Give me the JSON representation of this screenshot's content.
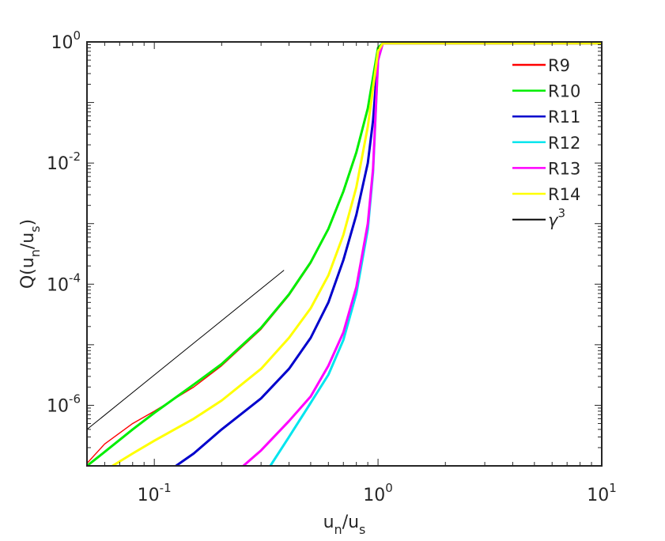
{
  "chart_data": {
    "type": "line",
    "title": "",
    "xscale": "log",
    "yscale": "log",
    "xlabel": {
      "main": "u",
      "sub1": "n",
      "mid": "/u",
      "sub2": "s"
    },
    "ylabel": {
      "pre": "Q(u",
      "sub1": "n",
      "mid": "/u",
      "sub2": "s",
      "post": ")"
    },
    "xlim": [
      0.05,
      10
    ],
    "ylim": [
      1e-07,
      1
    ],
    "xticks": [
      {
        "value": 0.1,
        "base": "10",
        "exp": "-1"
      },
      {
        "value": 1,
        "base": "10",
        "exp": "0"
      },
      {
        "value": 10,
        "base": "10",
        "exp": "1"
      }
    ],
    "yticks": [
      {
        "value": 1e-06,
        "base": "10",
        "exp": "-6"
      },
      {
        "value": 0.0001,
        "base": "10",
        "exp": "-4"
      },
      {
        "value": 0.01,
        "base": "10",
        "exp": "-2"
      },
      {
        "value": 1,
        "base": "10",
        "exp": "0"
      }
    ],
    "legend_position": "top-right",
    "series": [
      {
        "name": "R9",
        "color": "#ff0000",
        "x": [
          0.05,
          0.06,
          0.08,
          0.1,
          0.15,
          0.2,
          0.3,
          0.4,
          0.5,
          0.6,
          0.7,
          0.8,
          0.9,
          1.0,
          1.05,
          10
        ],
        "y": [
          1.1e-07,
          2.3e-07,
          5e-07,
          8e-07,
          2e-06,
          4.5e-06,
          1.8e-05,
          6.5e-05,
          0.00022,
          0.0008,
          0.0033,
          0.015,
          0.08,
          0.8,
          0.95,
          0.95
        ]
      },
      {
        "name": "R10",
        "color": "#00ee00",
        "x": [
          0.05,
          0.06,
          0.08,
          0.1,
          0.15,
          0.2,
          0.3,
          0.4,
          0.5,
          0.6,
          0.7,
          0.8,
          0.9,
          1.0,
          1.05,
          10
        ],
        "y": [
          1e-07,
          1.7e-07,
          4e-07,
          7.5e-07,
          2.2e-06,
          4.8e-06,
          1.9e-05,
          6.8e-05,
          0.00023,
          0.00082,
          0.0034,
          0.015,
          0.08,
          0.8,
          0.95,
          0.95
        ]
      },
      {
        "name": "R11",
        "color": "#0000cc",
        "x": [
          0.125,
          0.15,
          0.2,
          0.3,
          0.4,
          0.5,
          0.6,
          0.7,
          0.8,
          0.9,
          0.95,
          1.0,
          1.05,
          10
        ],
        "y": [
          1e-07,
          1.6e-07,
          4e-07,
          1.3e-06,
          4e-06,
          1.3e-05,
          5e-05,
          0.00025,
          0.0014,
          0.01,
          0.05,
          0.6,
          0.95,
          0.95
        ]
      },
      {
        "name": "R12",
        "color": "#00e5ee",
        "x": [
          0.33,
          0.4,
          0.5,
          0.6,
          0.7,
          0.8,
          0.9,
          0.95,
          1.0,
          1.05,
          10
        ],
        "y": [
          1e-07,
          3e-07,
          1.1e-06,
          3.2e-06,
          1.2e-05,
          7e-05,
          0.0008,
          0.007,
          0.5,
          0.95,
          0.95
        ]
      },
      {
        "name": "R13",
        "color": "#ff00ff",
        "x": [
          0.25,
          0.3,
          0.4,
          0.5,
          0.6,
          0.7,
          0.8,
          0.9,
          0.95,
          1.0,
          1.05,
          10
        ],
        "y": [
          1e-07,
          1.8e-07,
          5.5e-07,
          1.4e-06,
          4.5e-06,
          1.6e-05,
          9e-05,
          0.001,
          0.008,
          0.5,
          0.95,
          0.95
        ]
      },
      {
        "name": "R14",
        "color": "#ffff00",
        "x": [
          0.065,
          0.08,
          0.1,
          0.15,
          0.2,
          0.3,
          0.4,
          0.5,
          0.6,
          0.7,
          0.8,
          0.9,
          1.0,
          1.05,
          10
        ],
        "y": [
          1e-07,
          1.6e-07,
          2.6e-07,
          6e-07,
          1.2e-06,
          4e-06,
          1.3e-05,
          4e-05,
          0.00014,
          0.00065,
          0.004,
          0.04,
          0.7,
          0.95,
          0.95
        ]
      },
      {
        "name": "γ³",
        "legend_base": "γ",
        "legend_exp": "3",
        "color": "#000000",
        "x": [
          0.05,
          0.38
        ],
        "y": [
          4e-07,
          0.00017
        ]
      }
    ]
  }
}
